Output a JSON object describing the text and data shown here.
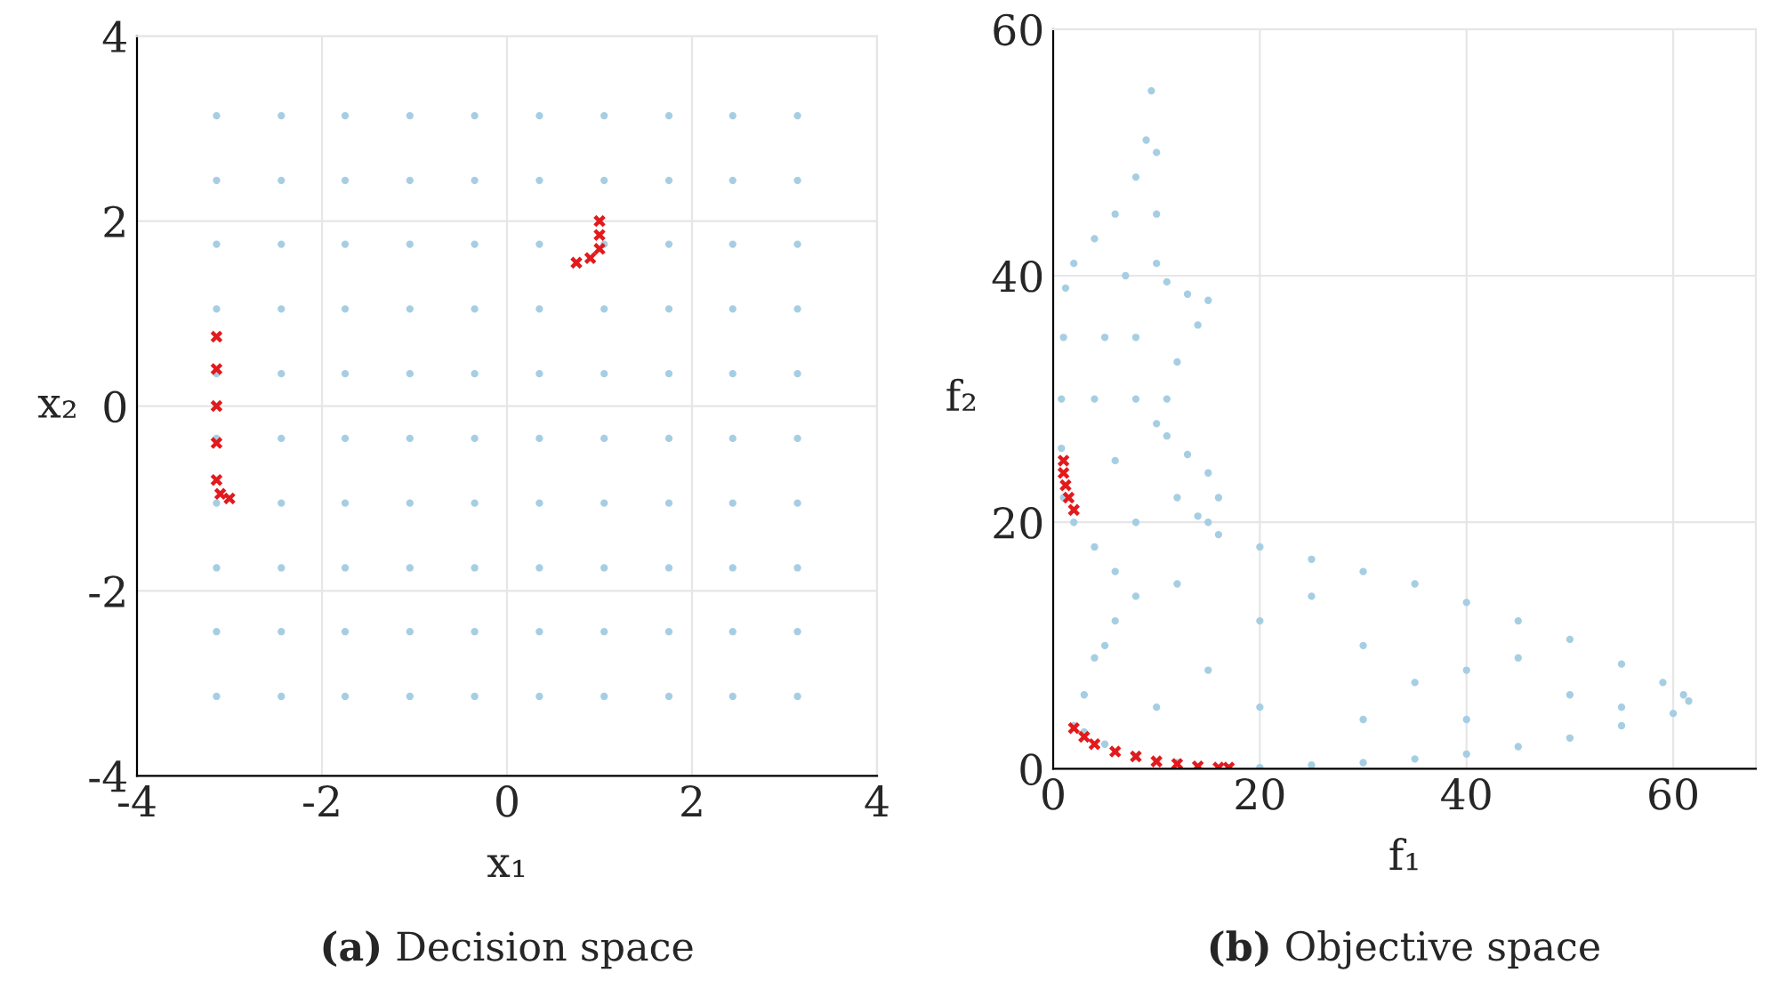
{
  "chart_data": [
    {
      "type": "scatter",
      "title": "(a) Decision space",
      "xlabel": "x₁",
      "ylabel": "x₂",
      "xlim": [
        -4,
        4
      ],
      "ylim": [
        -4,
        4
      ],
      "xticks": [
        -4,
        -2,
        0,
        2,
        4
      ],
      "yticks": [
        -4,
        -2,
        0,
        2,
        4
      ],
      "grid": true,
      "legend": false,
      "series": [
        {
          "color": "#a6cee3",
          "marker": "circle",
          "x": [
            -3.14,
            -2.44,
            -1.75,
            -1.05,
            -0.35,
            0.35,
            1.05,
            1.75,
            2.44,
            3.14,
            -3.14,
            -2.44,
            -1.75,
            -1.05,
            -0.35,
            0.35,
            1.05,
            1.75,
            2.44,
            3.14,
            -3.14,
            -2.44,
            -1.75,
            -1.05,
            -0.35,
            0.35,
            1.05,
            1.75,
            2.44,
            3.14,
            -3.14,
            -2.44,
            -1.75,
            -1.05,
            -0.35,
            0.35,
            1.05,
            1.75,
            2.44,
            3.14,
            -3.14,
            -2.44,
            -1.75,
            -1.05,
            -0.35,
            0.35,
            1.05,
            1.75,
            2.44,
            3.14,
            -3.14,
            -2.44,
            -1.75,
            -1.05,
            -0.35,
            0.35,
            1.05,
            1.75,
            2.44,
            3.14,
            -3.14,
            -2.44,
            -1.75,
            -1.05,
            -0.35,
            0.35,
            1.05,
            1.75,
            2.44,
            3.14,
            -3.14,
            -2.44,
            -1.75,
            -1.05,
            -0.35,
            0.35,
            1.05,
            1.75,
            2.44,
            3.14,
            -3.14,
            -2.44,
            -1.75,
            -1.05,
            -0.35,
            0.35,
            1.05,
            1.75,
            2.44,
            3.14,
            -3.14,
            -2.44,
            -1.75,
            -1.05,
            -0.35,
            0.35,
            1.05,
            1.75,
            2.44,
            3.14
          ],
          "values": [
            -3.14,
            -3.14,
            -3.14,
            -3.14,
            -3.14,
            -3.14,
            -3.14,
            -3.14,
            -3.14,
            -3.14,
            -2.44,
            -2.44,
            -2.44,
            -2.44,
            -2.44,
            -2.44,
            -2.44,
            -2.44,
            -2.44,
            -2.44,
            -1.75,
            -1.75,
            -1.75,
            -1.75,
            -1.75,
            -1.75,
            -1.75,
            -1.75,
            -1.75,
            -1.75,
            -1.05,
            -1.05,
            -1.05,
            -1.05,
            -1.05,
            -1.05,
            -1.05,
            -1.05,
            -1.05,
            -1.05,
            -0.35,
            -0.35,
            -0.35,
            -0.35,
            -0.35,
            -0.35,
            -0.35,
            -0.35,
            -0.35,
            -0.35,
            0.35,
            0.35,
            0.35,
            0.35,
            0.35,
            0.35,
            0.35,
            0.35,
            0.35,
            0.35,
            1.05,
            1.05,
            1.05,
            1.05,
            1.05,
            1.05,
            1.05,
            1.05,
            1.05,
            1.05,
            1.75,
            1.75,
            1.75,
            1.75,
            1.75,
            1.75,
            1.75,
            1.75,
            1.75,
            1.75,
            2.44,
            2.44,
            2.44,
            2.44,
            2.44,
            2.44,
            2.44,
            2.44,
            2.44,
            2.44,
            3.14,
            3.14,
            3.14,
            3.14,
            3.14,
            3.14,
            3.14,
            3.14,
            3.14,
            3.14
          ]
        },
        {
          "color": "#e31a1c",
          "marker": "cross",
          "x": [
            -3.14,
            -3.14,
            -3.14,
            -3.14,
            -3.14,
            -3.1,
            -3.0,
            0.75,
            0.9,
            1.0,
            1.0,
            1.0
          ],
          "values": [
            0.75,
            0.4,
            0,
            -0.4,
            -0.8,
            -0.95,
            -1.0,
            1.55,
            1.6,
            1.7,
            1.85,
            2.0
          ]
        }
      ]
    },
    {
      "type": "scatter",
      "title": "(b) Objective space",
      "xlabel": "f₁",
      "ylabel": "f₂",
      "xlim": [
        0,
        68
      ],
      "ylim": [
        0,
        60
      ],
      "xticks": [
        0,
        20,
        40,
        60
      ],
      "yticks": [
        0,
        20,
        40,
        60
      ],
      "grid": true,
      "legend": false,
      "series": [
        {
          "color": "#a6cee3",
          "marker": "circle",
          "x": [
            2,
            3,
            4,
            6,
            8,
            6,
            4,
            2,
            1,
            0.8,
            0.8,
            1,
            1.2,
            2,
            4,
            6,
            8,
            9,
            9.5,
            10,
            10,
            10,
            11,
            13,
            15,
            14,
            12,
            11,
            10,
            11,
            13,
            15,
            16,
            15,
            14,
            16,
            20,
            25,
            30,
            35,
            40,
            45,
            50,
            55,
            59,
            61,
            61.5,
            60,
            55,
            50,
            45,
            40,
            35,
            30,
            25,
            20,
            17,
            12,
            8,
            5,
            3,
            8,
            6,
            4,
            5,
            7,
            20,
            30,
            40,
            50,
            20,
            30,
            40,
            15,
            10,
            25,
            45,
            12,
            8,
            8,
            12,
            5,
            35,
            55
          ],
          "values": [
            3.5,
            6,
            9,
            12,
            14,
            16,
            18,
            20,
            22,
            26,
            30,
            35,
            39,
            41,
            43,
            45,
            48,
            51,
            55,
            50,
            45,
            41,
            39.5,
            38.5,
            38,
            36,
            33,
            30,
            28,
            27,
            25.5,
            24,
            22,
            20,
            20.5,
            19,
            18,
            17,
            16,
            15,
            13.5,
            12,
            10.5,
            8.5,
            7,
            6,
            5.5,
            4.5,
            3.5,
            2.5,
            1.8,
            1.2,
            0.8,
            0.5,
            0.3,
            0.1,
            0.1,
            0.5,
            1,
            2,
            3,
            20,
            25,
            30,
            35,
            40,
            12,
            10,
            8,
            6,
            5,
            4,
            4,
            8,
            5,
            14,
            9,
            15,
            30,
            35,
            22,
            10,
            7,
            5
          ]
        },
        {
          "color": "#e31a1c",
          "marker": "cross",
          "x": [
            2,
            3,
            4,
            6,
            8,
            10,
            12,
            14,
            16,
            17,
            1,
            1,
            1.2,
            1.5,
            2
          ],
          "values": [
            3.3,
            2.6,
            2,
            1.4,
            1,
            0.6,
            0.4,
            0.2,
            0.1,
            0.1,
            25,
            24,
            23,
            22,
            21
          ]
        }
      ]
    }
  ]
}
